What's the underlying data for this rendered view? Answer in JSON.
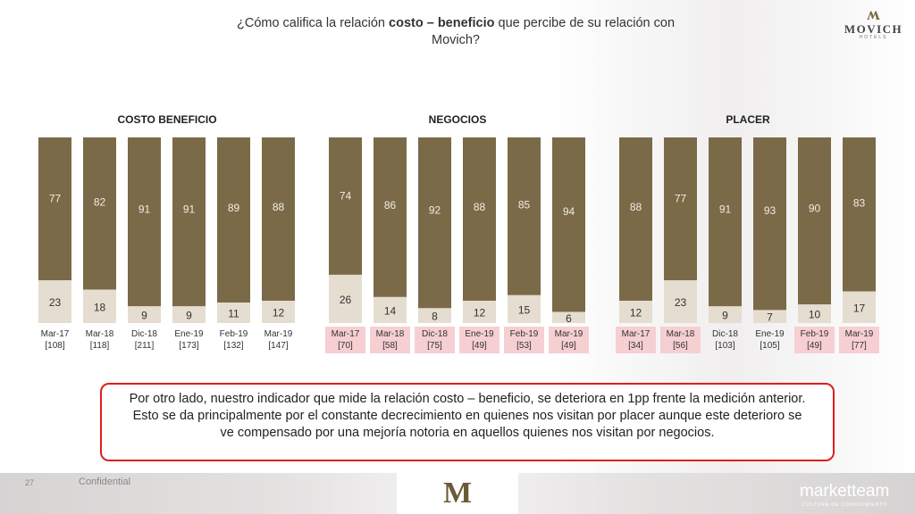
{
  "header": {
    "title_pre": "¿Cómo califica la relación ",
    "title_bold": "costo – beneficio",
    "title_post": " que percibe de su relación con Movich?"
  },
  "logo": {
    "word": "MOVICH",
    "sub": "HOTELS"
  },
  "callout": {
    "text": "Por otro lado, nuestro indicador que mide la relación costo – beneficio, se deteriora en 1pp frente la medición anterior. Esto se da principalmente por el constante decrecimiento en quienes nos visitan por placer aunque este deterioro se ve compensado por una mejoría notoria en aquellos quienes nos visitan por negocios."
  },
  "footer": {
    "page": "27",
    "confidential": "Confidential",
    "brand": "marketteam",
    "brand_sub": "CULTURA DE CONOCIMIENTO"
  },
  "colors": {
    "top_segment": "#7b6a48",
    "bottom_segment": "#e5ddd0",
    "highlight": "#f6cfd2",
    "callout_border": "#e01e1e"
  },
  "chart_data": [
    {
      "type": "bar",
      "stacked": true,
      "title": "COSTO BENEFICIO",
      "categories": [
        "Mar-17",
        "Mar-18",
        "Dic-18",
        "Ene-19",
        "Feb-19",
        "Mar-19"
      ],
      "bases": [
        "[108]",
        "[118]",
        "[211]",
        "[173]",
        "[132]",
        "[147]"
      ],
      "highlighted": [
        false,
        false,
        false,
        false,
        false,
        false
      ],
      "series": [
        {
          "values": [
            77,
            82,
            91,
            91,
            89,
            88
          ]
        },
        {
          "values": [
            23,
            18,
            9,
            9,
            11,
            12
          ]
        }
      ],
      "ylim": [
        0,
        100
      ]
    },
    {
      "type": "bar",
      "stacked": true,
      "title": "NEGOCIOS",
      "categories": [
        "Mar-17",
        "Mar-18",
        "Dic-18",
        "Ene-19",
        "Feb-19",
        "Mar-19"
      ],
      "bases": [
        "[70]",
        "[58]",
        "[75]",
        "[49]",
        "[53]",
        "[49]"
      ],
      "highlighted": [
        true,
        true,
        true,
        true,
        true,
        true
      ],
      "series": [
        {
          "values": [
            74,
            86,
            92,
            88,
            85,
            94
          ]
        },
        {
          "values": [
            26,
            14,
            8,
            12,
            15,
            6
          ]
        }
      ],
      "ylim": [
        0,
        100
      ]
    },
    {
      "type": "bar",
      "stacked": true,
      "title": "PLACER",
      "categories": [
        "Mar-17",
        "Mar-18",
        "Dic-18",
        "Ene-19",
        "Feb-19",
        "Mar-19"
      ],
      "bases": [
        "[34]",
        "[56]",
        "[103]",
        "[105]",
        "[49]",
        "[77]"
      ],
      "highlighted": [
        true,
        true,
        false,
        false,
        true,
        true
      ],
      "series": [
        {
          "values": [
            88,
            77,
            91,
            93,
            90,
            83
          ]
        },
        {
          "values": [
            12,
            23,
            9,
            7,
            10,
            17
          ]
        }
      ],
      "ylim": [
        0,
        100
      ]
    }
  ]
}
